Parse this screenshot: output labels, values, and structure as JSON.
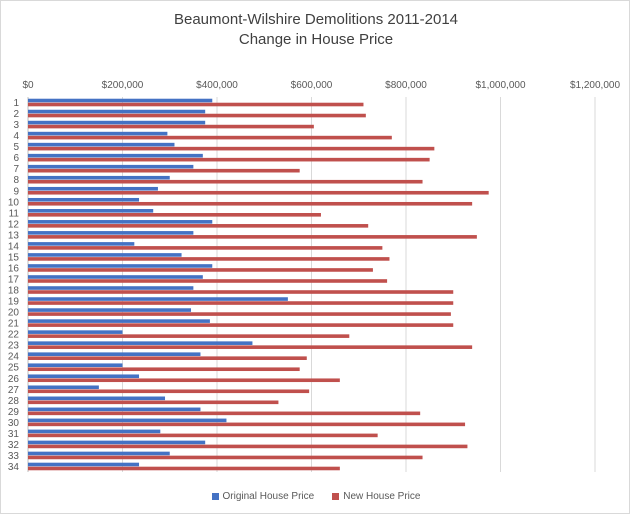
{
  "chart_data": {
    "type": "bar",
    "orientation": "horizontal",
    "title": "Beaumont-Wilshire Demolitions 2011-2014",
    "subtitle": "Change in House Price",
    "xlim": [
      0,
      1200000
    ],
    "x_ticks": [
      0,
      200000,
      400000,
      600000,
      800000,
      1000000,
      1200000
    ],
    "x_tick_labels": [
      "$0",
      "$200,000",
      "$400,000",
      "$600,000",
      "$800,000",
      "$1,000,000",
      "$1,200,000"
    ],
    "x_axis_position": "top",
    "grid": "vertical",
    "legend_position": "bottom",
    "categories": [
      "1",
      "2",
      "3",
      "4",
      "5",
      "6",
      "7",
      "8",
      "9",
      "10",
      "11",
      "12",
      "13",
      "14",
      "15",
      "16",
      "17",
      "18",
      "19",
      "20",
      "21",
      "22",
      "23",
      "24",
      "25",
      "26",
      "27",
      "28",
      "29",
      "30",
      "31",
      "32",
      "33",
      "34"
    ],
    "series": [
      {
        "name": "Original House Price",
        "color": "#4472c4",
        "values": [
          390000,
          375000,
          375000,
          295000,
          310000,
          370000,
          350000,
          300000,
          275000,
          235000,
          265000,
          390000,
          350000,
          225000,
          325000,
          390000,
          370000,
          350000,
          550000,
          345000,
          385000,
          200000,
          475000,
          365000,
          200000,
          235000,
          150000,
          290000,
          365000,
          420000,
          280000,
          375000,
          300000,
          235000
        ]
      },
      {
        "name": "New House Price",
        "color": "#c0504d",
        "values": [
          710000,
          715000,
          605000,
          770000,
          860000,
          850000,
          575000,
          835000,
          975000,
          940000,
          620000,
          720000,
          950000,
          750000,
          765000,
          730000,
          760000,
          900000,
          900000,
          895000,
          900000,
          680000,
          940000,
          590000,
          575000,
          660000,
          595000,
          530000,
          830000,
          925000,
          740000,
          930000,
          835000,
          660000
        ]
      }
    ]
  }
}
